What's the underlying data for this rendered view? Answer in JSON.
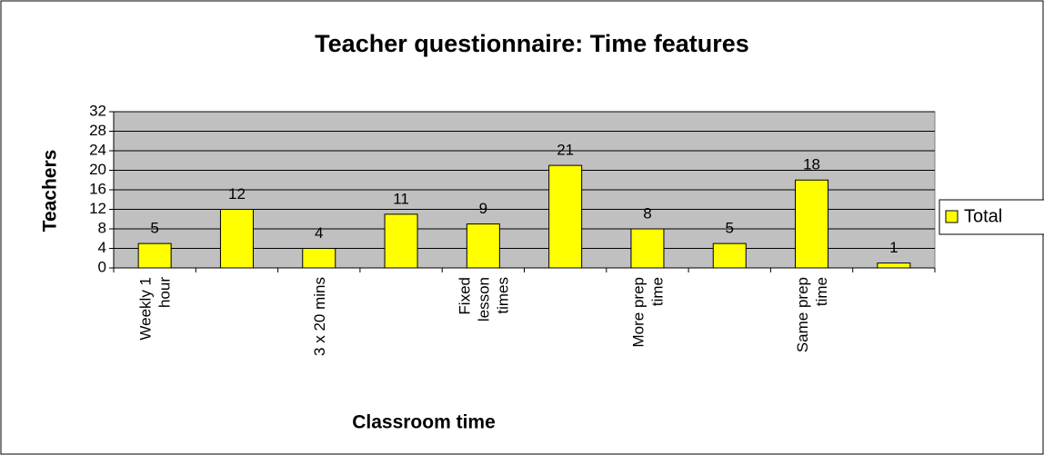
{
  "chart_data": {
    "type": "bar",
    "title": "Teacher questionnaire: Time features",
    "x_label": "Classroom time",
    "y_label": "Teachers",
    "categories": [
      "Weekly 1\nhour",
      null,
      "3 x 20 mins",
      null,
      "Fixed\nlesson\ntimes",
      null,
      "More prep\ntime",
      null,
      "Same prep\ntime",
      null
    ],
    "series": [
      {
        "name": "Total",
        "color": "#ffff00",
        "values": [
          5,
          12,
          4,
          11,
          9,
          21,
          8,
          5,
          18,
          1
        ]
      }
    ],
    "ylim": [
      0,
      32
    ],
    "yticks": [
      0,
      4,
      8,
      12,
      16,
      20,
      24,
      28,
      32
    ],
    "grid": true,
    "legend": "right"
  }
}
